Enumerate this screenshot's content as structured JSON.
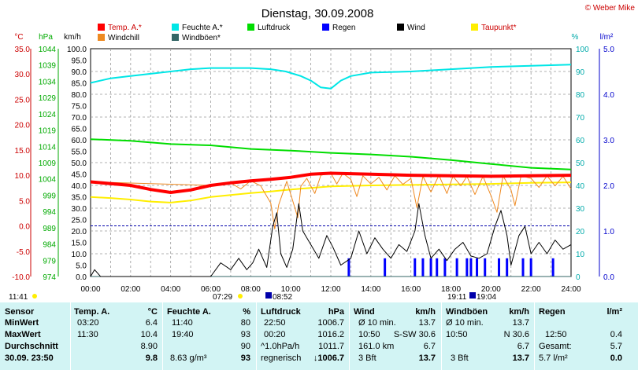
{
  "title": "Dienstag, 30.09.2008",
  "credit": "© Weber Mike",
  "colors": {
    "temp": "#ff0000",
    "humidity": "#00e6e6",
    "pressure": "#00dd00",
    "rain": "#0000ff",
    "wind": "#000000",
    "dewpoint": "#ffee00",
    "windchill": "#ee8a22",
    "gust": "#336666",
    "grid": "#888888",
    "zero": "#0000aa"
  },
  "legend": [
    {
      "label": "Temp. A.*",
      "color": "#ff0000"
    },
    {
      "label": "Feuchte A.*",
      "color": "#00e6e6"
    },
    {
      "label": "Luftdruck",
      "color": "#00dd00"
    },
    {
      "label": "Regen",
      "color": "#0000ff"
    },
    {
      "label": "Wind",
      "color": "#000000"
    },
    {
      "label": "Taupunkt*",
      "color": "#ffee00"
    },
    {
      "label": "Windchill",
      "color": "#ee8a22"
    },
    {
      "label": "Windböen*",
      "color": "#336666"
    }
  ],
  "axis_headers": {
    "temp": "°C",
    "pressure": "hPa",
    "wind": "km/h",
    "humidity": "%",
    "rain": "l/m²"
  },
  "sun_markers": {
    "sunrise": "07:29",
    "sunset": "19:11",
    "moonrise": "08:52",
    "moonset": "19:04",
    "left_time": "11:41"
  },
  "chart_data": {
    "type": "line",
    "x_unit": "hour",
    "xlim": [
      0,
      24
    ],
    "x_tick_labels": [
      "00:00",
      "02:00",
      "04:00",
      "06:00",
      "08:00",
      "10:00",
      "12:00",
      "14:00",
      "16:00",
      "18:00",
      "20:00",
      "22:00",
      "24:00"
    ],
    "axes": {
      "temp": {
        "label": "°C",
        "ylim": [
          -10,
          35
        ],
        "ticks": [
          "35.0",
          "30.0",
          "25.0",
          "20.0",
          "15.0",
          "10.0",
          "5.0",
          "0.0",
          "-5.0",
          "-10.0"
        ]
      },
      "pressure": {
        "label": "hPa",
        "ylim": [
          974,
          1044
        ],
        "ticks": [
          "1044",
          "1039",
          "1034",
          "1029",
          "1024",
          "1019",
          "1014",
          "1009",
          "1004",
          "999",
          "994",
          "989",
          "984",
          "979",
          "974"
        ]
      },
      "wind": {
        "label": "km/h",
        "ylim": [
          0,
          100
        ],
        "ticks": [
          "100.0",
          "95.0",
          "90.0",
          "85.0",
          "80.0",
          "75.0",
          "70.0",
          "65.0",
          "60.0",
          "55.0",
          "50.0",
          "45.0",
          "40.0",
          "35.0",
          "30.0",
          "25.0",
          "20.0",
          "15.0",
          "10.0",
          "5.0",
          "0.0"
        ]
      },
      "humidity": {
        "label": "%",
        "ylim": [
          0,
          100
        ],
        "ticks": [
          "100",
          "90",
          "80",
          "70",
          "60",
          "50",
          "40",
          "30",
          "20",
          "10",
          "0"
        ]
      },
      "rain": {
        "label": "l/m²",
        "ylim": [
          0,
          5
        ],
        "ticks": [
          "5.0",
          "4.0",
          "3.0",
          "2.0",
          "1.0",
          "0.0"
        ]
      }
    },
    "series": [
      {
        "name": "Temp. A.*",
        "axis": "temp",
        "color": "#ff0000",
        "width": 4,
        "points": [
          [
            0,
            8.7
          ],
          [
            2,
            8.0
          ],
          [
            3,
            7.2
          ],
          [
            4,
            6.6
          ],
          [
            5,
            7.1
          ],
          [
            6,
            8.0
          ],
          [
            7,
            8.5
          ],
          [
            8,
            8.9
          ],
          [
            9,
            9.2
          ],
          [
            10,
            9.6
          ],
          [
            11,
            10.2
          ],
          [
            12,
            10.4
          ],
          [
            14,
            10.2
          ],
          [
            16,
            10.0
          ],
          [
            18,
            9.9
          ],
          [
            20,
            9.8
          ],
          [
            22,
            9.9
          ],
          [
            24,
            10.0
          ]
        ]
      },
      {
        "name": "Feuchte A.*",
        "axis": "humidity",
        "color": "#00e6e6",
        "width": 2,
        "points": [
          [
            0,
            85
          ],
          [
            1,
            87
          ],
          [
            2,
            88
          ],
          [
            3,
            89
          ],
          [
            4,
            90
          ],
          [
            5,
            91
          ],
          [
            6,
            91.5
          ],
          [
            8,
            91.5
          ],
          [
            9,
            91
          ],
          [
            9.75,
            90
          ],
          [
            10.5,
            88
          ],
          [
            11,
            86
          ],
          [
            11.5,
            83
          ],
          [
            12,
            82.5
          ],
          [
            12.5,
            86
          ],
          [
            13,
            88
          ],
          [
            14,
            89.5
          ],
          [
            16,
            90
          ],
          [
            18,
            91
          ],
          [
            20,
            92
          ],
          [
            22,
            92.5
          ],
          [
            24,
            93
          ]
        ]
      },
      {
        "name": "Luftdruck",
        "axis": "pressure",
        "color": "#00dd00",
        "width": 2,
        "points": [
          [
            0,
            1016.2
          ],
          [
            2,
            1015.7
          ],
          [
            4,
            1014.7
          ],
          [
            6,
            1014.3
          ],
          [
            8,
            1013.2
          ],
          [
            10,
            1012.7
          ],
          [
            12,
            1012.0
          ],
          [
            14,
            1011.5
          ],
          [
            16,
            1010.8
          ],
          [
            18,
            1009.8
          ],
          [
            20,
            1008.6
          ],
          [
            22,
            1007.4
          ],
          [
            24,
            1006.9
          ]
        ]
      },
      {
        "name": "Taupunkt*",
        "axis": "temp",
        "color": "#ffee00",
        "width": 2,
        "points": [
          [
            0,
            5.7
          ],
          [
            1,
            5.5
          ],
          [
            2,
            5.2
          ],
          [
            3,
            4.8
          ],
          [
            4,
            4.6
          ],
          [
            5,
            5.0
          ],
          [
            6,
            5.7
          ],
          [
            7,
            6.1
          ],
          [
            8,
            6.5
          ],
          [
            9,
            6.8
          ],
          [
            10,
            7.2
          ],
          [
            11,
            7.5
          ],
          [
            12,
            7.8
          ],
          [
            14,
            8.0
          ],
          [
            16,
            8.1
          ],
          [
            18,
            8.2
          ],
          [
            20,
            8.3
          ],
          [
            22,
            8.5
          ],
          [
            24,
            8.6
          ]
        ]
      },
      {
        "name": "Windchill",
        "axis": "temp",
        "color": "#ee8a22",
        "width": 1,
        "points": [
          [
            0,
            8.7
          ],
          [
            6,
            8.0
          ],
          [
            7,
            8.5
          ],
          [
            7.5,
            7.3
          ],
          [
            8,
            8.9
          ],
          [
            8.5,
            7.9
          ],
          [
            9,
            4.5
          ],
          [
            9.2,
            -0.6
          ],
          [
            9.4,
            4.2
          ],
          [
            9.8,
            8.8
          ],
          [
            10.2,
            3.6
          ],
          [
            10.35,
            1.6
          ],
          [
            10.5,
            7.8
          ],
          [
            10.8,
            9.4
          ],
          [
            11.2,
            6.4
          ],
          [
            11.5,
            10.0
          ],
          [
            12,
            10.4
          ],
          [
            12.3,
            8.3
          ],
          [
            12.6,
            10.4
          ],
          [
            13,
            9.2
          ],
          [
            13.3,
            5.8
          ],
          [
            13.6,
            9.9
          ],
          [
            14,
            8.3
          ],
          [
            14.4,
            9.6
          ],
          [
            14.8,
            7.1
          ],
          [
            15.2,
            9.9
          ],
          [
            15.6,
            8.2
          ],
          [
            16,
            9.4
          ],
          [
            16.3,
            3.6
          ],
          [
            16.6,
            9.8
          ],
          [
            17,
            6.7
          ],
          [
            17.4,
            10.0
          ],
          [
            17.8,
            6.4
          ],
          [
            18.1,
            9.8
          ],
          [
            18.5,
            7.9
          ],
          [
            18.8,
            9.8
          ],
          [
            19.2,
            6.2
          ],
          [
            19.6,
            9.8
          ],
          [
            20,
            6.0
          ],
          [
            20.3,
            2.7
          ],
          [
            20.6,
            9.9
          ],
          [
            21,
            7.1
          ],
          [
            21.2,
            4.0
          ],
          [
            21.5,
            9.9
          ],
          [
            22,
            9.4
          ],
          [
            22.4,
            7.6
          ],
          [
            22.8,
            9.9
          ],
          [
            23.2,
            7.9
          ],
          [
            23.6,
            9.8
          ],
          [
            24,
            7.3
          ]
        ]
      },
      {
        "name": "Wind",
        "axis": "wind",
        "color": "#000000",
        "width": 1,
        "points": [
          [
            0,
            0
          ],
          [
            0.2,
            3
          ],
          [
            0.5,
            0
          ],
          [
            6,
            0
          ],
          [
            6.5,
            6
          ],
          [
            7,
            3
          ],
          [
            7.4,
            8
          ],
          [
            7.8,
            3
          ],
          [
            8.1,
            6
          ],
          [
            8.4,
            12
          ],
          [
            8.8,
            4
          ],
          [
            9.1,
            22
          ],
          [
            9.3,
            28
          ],
          [
            9.5,
            10
          ],
          [
            9.8,
            4
          ],
          [
            10.1,
            12
          ],
          [
            10.4,
            32
          ],
          [
            10.6,
            20
          ],
          [
            11,
            14
          ],
          [
            11.4,
            8
          ],
          [
            11.8,
            18
          ],
          [
            12.1,
            13
          ],
          [
            12.5,
            5
          ],
          [
            13,
            8
          ],
          [
            13.4,
            20
          ],
          [
            13.8,
            10
          ],
          [
            14.2,
            17
          ],
          [
            14.6,
            12
          ],
          [
            15,
            8
          ],
          [
            15.4,
            14
          ],
          [
            15.8,
            11
          ],
          [
            16.2,
            20
          ],
          [
            16.4,
            32
          ],
          [
            16.7,
            18
          ],
          [
            17,
            8
          ],
          [
            17.4,
            12
          ],
          [
            17.8,
            7
          ],
          [
            18.2,
            12
          ],
          [
            18.6,
            15
          ],
          [
            19,
            9
          ],
          [
            19.4,
            8
          ],
          [
            19.8,
            10
          ],
          [
            20.2,
            22
          ],
          [
            20.5,
            29
          ],
          [
            20.8,
            18
          ],
          [
            21,
            5
          ],
          [
            21.4,
            18
          ],
          [
            21.7,
            22
          ],
          [
            22,
            10
          ],
          [
            22.4,
            15
          ],
          [
            22.8,
            10
          ],
          [
            23.2,
            16
          ],
          [
            23.6,
            12
          ],
          [
            24,
            14
          ]
        ]
      },
      {
        "name": "Windböen*",
        "axis": "wind",
        "color": "#336666",
        "width": 1,
        "points": [
          [
            0,
            0
          ],
          [
            24,
            0
          ]
        ]
      }
    ],
    "rain_bars_hours": [
      12.9,
      14.7,
      16.2,
      16.6,
      17.0,
      17.3,
      17.7,
      18.3,
      18.8,
      19.0,
      19.3,
      19.7,
      20.4,
      20.8,
      21.6,
      22.0,
      23.1
    ],
    "rain_bar_value": 0.4
  },
  "table": {
    "headers": {
      "sensor": "Sensor",
      "temp": "Temp. A.",
      "temp_unit": "°C",
      "hum": "Feuchte A.",
      "hum_unit": "%",
      "press": "Luftdruck",
      "press_unit": "hPa",
      "wind": "Wind",
      "wind_unit": "km/h",
      "gust": "Windböen",
      "gust_unit": "km/h",
      "rain": "Regen",
      "rain_unit": "l/m²"
    },
    "row_labels": [
      "MinWert",
      "MaxWert",
      "Durchschnitt",
      "30.09. 23:50"
    ],
    "temp": [
      [
        "03:20",
        "6.4"
      ],
      [
        "11:30",
        "10.4"
      ],
      [
        "",
        "8.90"
      ],
      [
        "",
        "9.8"
      ]
    ],
    "hum": [
      [
        "11:40",
        "80"
      ],
      [
        "19:40",
        "93"
      ],
      [
        "",
        "90"
      ],
      [
        "8.63 g/m³",
        "93"
      ]
    ],
    "press": [
      [
        "22:50",
        "1006.7"
      ],
      [
        "00:20",
        "1016.2"
      ],
      [
        "^1.0hPa/h",
        "1011.7"
      ],
      [
        "regnerisch",
        "↓1006.7"
      ]
    ],
    "wind": [
      [
        "Ø 10 min.",
        "",
        "13.7"
      ],
      [
        "10:50",
        "S-SW 30.6",
        ""
      ],
      [
        "161.0 km",
        "",
        "6.7"
      ],
      [
        "3 Bft",
        "",
        "13.7"
      ]
    ],
    "gust": [
      [
        "Ø 10 min.",
        "",
        "13.7"
      ],
      [
        "10:50",
        "N 30.6",
        ""
      ],
      [
        "",
        "",
        "6.7"
      ],
      [
        "3 Bft",
        "",
        "13.7"
      ]
    ],
    "rain": [
      [
        "",
        ""
      ],
      [
        "12:50",
        "0.4"
      ],
      [
        "Gesamt:",
        "5.7"
      ],
      [
        "5.7 l/m²",
        "0.0"
      ]
    ]
  }
}
